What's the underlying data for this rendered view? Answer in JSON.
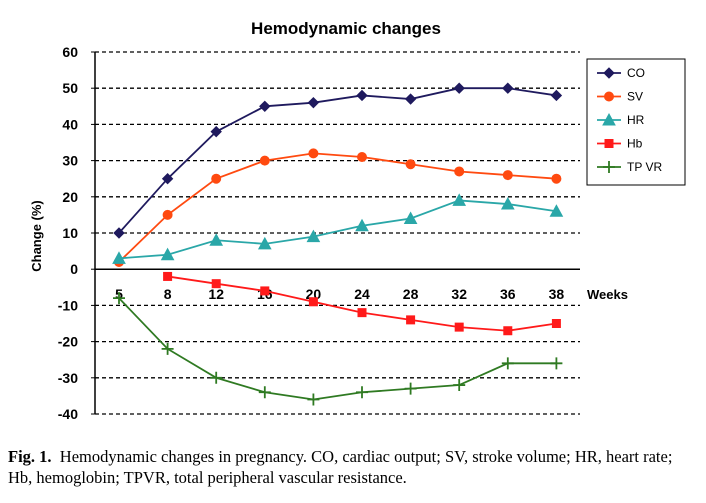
{
  "chart_data": {
    "type": "line",
    "title": "Hemodynamic changes",
    "xlabel": "Weeks",
    "ylabel": "Change (%)",
    "categories": [
      "5",
      "8",
      "12",
      "16",
      "20",
      "24",
      "28",
      "32",
      "36",
      "38"
    ],
    "ylim": [
      -40,
      60
    ],
    "yticks": [
      -40,
      -30,
      -20,
      -10,
      0,
      10,
      20,
      30,
      40,
      50,
      60
    ],
    "grid": "horizontal dashed",
    "legend_position": "right",
    "series": [
      {
        "name": "CO",
        "color": "#1f1a5e",
        "marker": "diamond",
        "values": [
          10,
          25,
          38,
          45,
          46,
          48,
          47,
          50,
          50,
          48
        ]
      },
      {
        "name": "SV",
        "color": "#ff4a10",
        "marker": "circle",
        "values": [
          2,
          15,
          25,
          30,
          32,
          31,
          29,
          27,
          26,
          25
        ]
      },
      {
        "name": "HR",
        "color": "#2aa7a8",
        "marker": "triangle",
        "values": [
          3,
          4,
          8,
          7,
          9,
          12,
          14,
          19,
          18,
          16
        ]
      },
      {
        "name": "Hb",
        "color": "#ff1a1a",
        "marker": "square",
        "values": [
          null,
          -2,
          -4,
          -6,
          -9,
          -12,
          -14,
          -16,
          -17,
          -15
        ]
      },
      {
        "name": "TPVR",
        "color": "#2f7a22",
        "marker": "plus",
        "values": [
          -8,
          -22,
          -30,
          -34,
          -36,
          -34,
          -33,
          -32,
          -26,
          -26
        ]
      }
    ]
  },
  "legend": {
    "items": [
      "CO",
      "SV",
      "HR",
      "Hb",
      "TP VR"
    ]
  },
  "caption": {
    "label": "Fig. 1.",
    "text": "Hemodynamic changes in pregnancy. CO, cardiac output; SV, stroke volume; HR, heart rate; Hb, hemoglobin; TPVR, total peripheral vascular resistance."
  }
}
